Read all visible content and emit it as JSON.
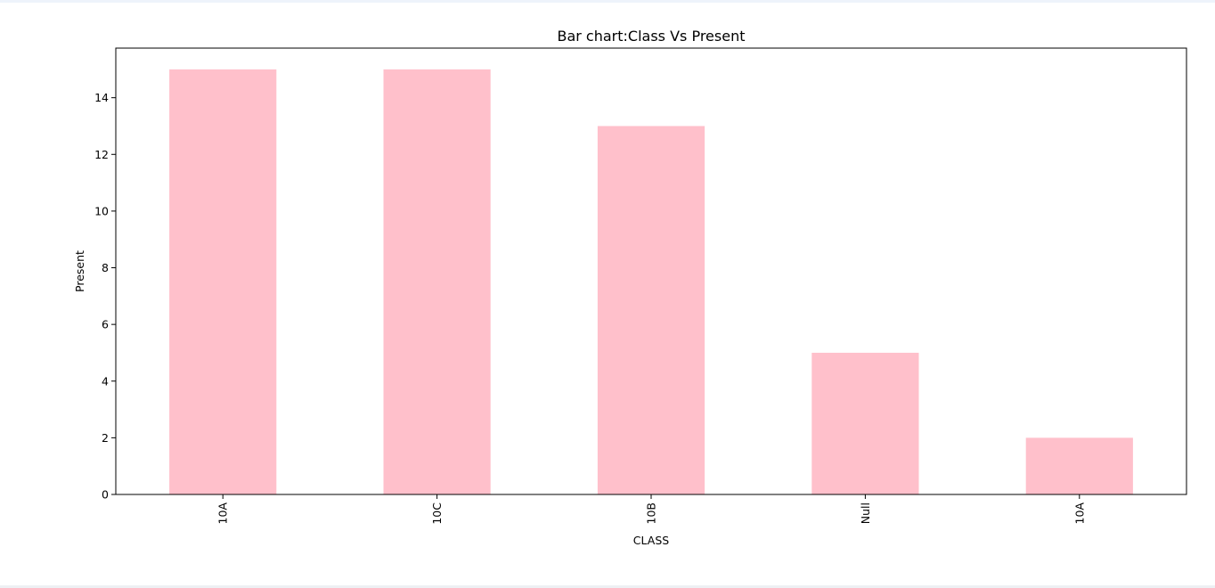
{
  "chart_data": {
    "type": "bar",
    "title": "Bar chart:Class Vs Present",
    "xlabel": "CLASS",
    "ylabel": "Present",
    "categories": [
      "10A",
      "10C",
      "10B",
      "Null",
      "10A"
    ],
    "values": [
      15,
      15,
      13,
      5,
      2
    ],
    "ylim": [
      0,
      15.75
    ],
    "yticks": [
      0,
      2,
      4,
      6,
      8,
      10,
      12,
      14
    ],
    "bar_color": "#ffc0cb",
    "grid": false,
    "legend": "none"
  }
}
